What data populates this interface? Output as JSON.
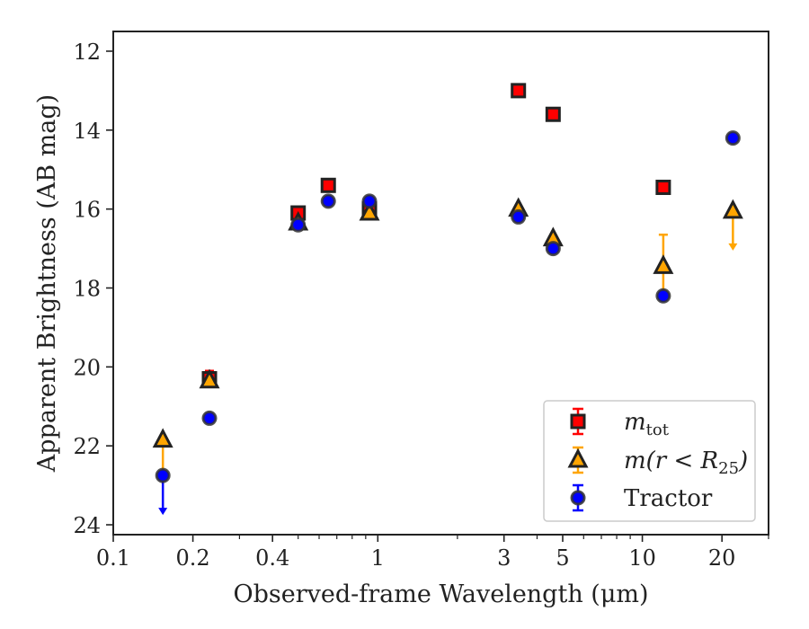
{
  "chart_data": {
    "type": "scatter",
    "title": "",
    "xlabel": "Observed-frame Wavelength (μm)",
    "ylabel": "Apparent Brightness (AB mag)",
    "xscale": "log",
    "xlim": [
      0.1,
      30
    ],
    "ylim": [
      24.25,
      11.5
    ],
    "y_inverted": true,
    "x_ticks": [
      {
        "value": 0.1,
        "label": "0.1"
      },
      {
        "value": 0.2,
        "label": "0.2"
      },
      {
        "value": 0.4,
        "label": "0.4"
      },
      {
        "value": 1,
        "label": "1"
      },
      {
        "value": 3,
        "label": "3"
      },
      {
        "value": 5,
        "label": "5"
      },
      {
        "value": 10,
        "label": "10"
      },
      {
        "value": 20,
        "label": "20"
      }
    ],
    "x_minor_ticks": [
      0.3,
      0.5,
      0.6,
      0.7,
      0.8,
      0.9,
      2,
      4,
      6,
      7,
      8,
      9,
      30
    ],
    "y_ticks": [
      {
        "value": 12,
        "label": "12"
      },
      {
        "value": 14,
        "label": "14"
      },
      {
        "value": 16,
        "label": "16"
      },
      {
        "value": 18,
        "label": "18"
      },
      {
        "value": 20,
        "label": "20"
      },
      {
        "value": 22,
        "label": "22"
      },
      {
        "value": 24,
        "label": "24"
      }
    ],
    "grid": false,
    "legend_position": "lower-right",
    "series": [
      {
        "name": "m_tot",
        "label_parts": {
          "main": "m",
          "sub": "tot"
        },
        "marker": "square",
        "color": "#ff0000",
        "edge_color": "#222222",
        "points": [
          {
            "x": 0.231,
            "y": 20.3,
            "err": 0.2
          },
          {
            "x": 0.5,
            "y": 16.1,
            "err": 0.05
          },
          {
            "x": 0.65,
            "y": 15.4,
            "err": 0.05
          },
          {
            "x": 0.93,
            "y": 16.0,
            "err": 0.2
          },
          {
            "x": 3.4,
            "y": 13.0,
            "err": 0.05
          },
          {
            "x": 4.6,
            "y": 13.6,
            "err": 0.05
          },
          {
            "x": 12.0,
            "y": 15.45,
            "err": 0.05
          }
        ]
      },
      {
        "name": "m(r < R25)",
        "label_parts": {
          "main": "m(r < R",
          "sub": "25",
          "close": ")"
        },
        "marker": "triangle",
        "color": "#ffa500",
        "edge_color": "#222222",
        "points": [
          {
            "x": 0.154,
            "y": 21.85,
            "upper_limit": true
          },
          {
            "x": 0.231,
            "y": 20.35,
            "err": 0.05
          },
          {
            "x": 0.5,
            "y": 16.35,
            "err": 0.05
          },
          {
            "x": 0.93,
            "y": 16.1,
            "err": 0.05
          },
          {
            "x": 3.4,
            "y": 16.0,
            "err": 0.05
          },
          {
            "x": 4.6,
            "y": 16.75,
            "err": 0.05
          },
          {
            "x": 12.0,
            "y": 17.45,
            "err": 0.8
          },
          {
            "x": 22.0,
            "y": 16.05,
            "upper_limit": true
          }
        ]
      },
      {
        "name": "Tractor",
        "label_parts": {
          "main": "Tractor"
        },
        "marker": "circle",
        "color": "#0000ff",
        "edge_color": "#333333",
        "points": [
          {
            "x": 0.154,
            "y": 22.75,
            "upper_limit": true
          },
          {
            "x": 0.231,
            "y": 21.3,
            "err": 0.05
          },
          {
            "x": 0.5,
            "y": 16.4,
            "err": 0.05
          },
          {
            "x": 0.65,
            "y": 15.8,
            "err": 0.05
          },
          {
            "x": 0.93,
            "y": 15.8,
            "err": 0.05
          },
          {
            "x": 3.4,
            "y": 16.2,
            "err": 0.05
          },
          {
            "x": 4.6,
            "y": 17.0,
            "err": 0.05
          },
          {
            "x": 12.0,
            "y": 18.2,
            "err": 0.05
          },
          {
            "x": 22.0,
            "y": 14.2,
            "err": 0.05
          }
        ]
      }
    ]
  }
}
